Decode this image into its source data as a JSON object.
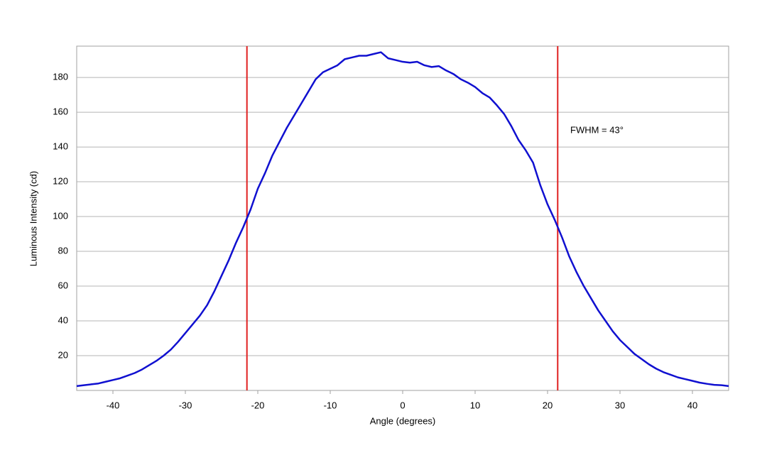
{
  "chart_data": {
    "type": "line",
    "x_label": "Angle (degrees)",
    "y_label": "Luminous Intensity (cd)",
    "annotation": "FWHM = 43°",
    "vlines": [
      -21.5,
      21.4
    ],
    "vline_color": "#e02020",
    "grid": true,
    "xlim": [
      -45,
      45
    ],
    "xticks": [
      -40,
      -30,
      -20,
      -10,
      0,
      10,
      20,
      30,
      40
    ],
    "ylim": [
      0,
      198
    ],
    "yticks": [
      20,
      40,
      60,
      80,
      100,
      120,
      140,
      160,
      180
    ],
    "x": [
      -45,
      -44,
      -43,
      -42,
      -41,
      -40,
      -39,
      -38,
      -37,
      -36,
      -35,
      -34,
      -33,
      -32,
      -31,
      -30,
      -29,
      -28,
      -27,
      -26,
      -25,
      -24,
      -23,
      -22,
      -21,
      -20,
      -19,
      -18,
      -17,
      -16,
      -15,
      -14,
      -13,
      -12,
      -11,
      -10,
      -9,
      -8,
      -7,
      -6,
      -5,
      -4,
      -3,
      -2,
      -1,
      0,
      1,
      2,
      3,
      4,
      5,
      6,
      7,
      8,
      9,
      10,
      11,
      12,
      13,
      14,
      15,
      16,
      17,
      18,
      19,
      20,
      21,
      22,
      23,
      24,
      25,
      26,
      27,
      28,
      29,
      30,
      31,
      32,
      33,
      34,
      35,
      36,
      37,
      38,
      39,
      40,
      41,
      42,
      43,
      44,
      45
    ],
    "series": [
      {
        "color": "#1010d0",
        "values": [
          2.5,
          3,
          3.5,
          4,
          5,
          6,
          7,
          8.5,
          10,
          12,
          14.5,
          17,
          20,
          23.5,
          28,
          33,
          38,
          43,
          49,
          57,
          66,
          75,
          85,
          94,
          104,
          116,
          125,
          135,
          143,
          151,
          158,
          165,
          172,
          179,
          183,
          185,
          187,
          190.5,
          191.5,
          192.5,
          192.5,
          193.5,
          194.5,
          191,
          190,
          189,
          188.5,
          189,
          187,
          186,
          186.5,
          184,
          182,
          179,
          177,
          174.5,
          171,
          168.5,
          164,
          159,
          152,
          144,
          138,
          131,
          118,
          107,
          98,
          88,
          77,
          68,
          60,
          53,
          46,
          40,
          34,
          29,
          25,
          21,
          18,
          15,
          12.5,
          10.5,
          9,
          7.5,
          6.5,
          5.5,
          4.5,
          3.8,
          3.2,
          3,
          2.5
        ]
      }
    ]
  }
}
